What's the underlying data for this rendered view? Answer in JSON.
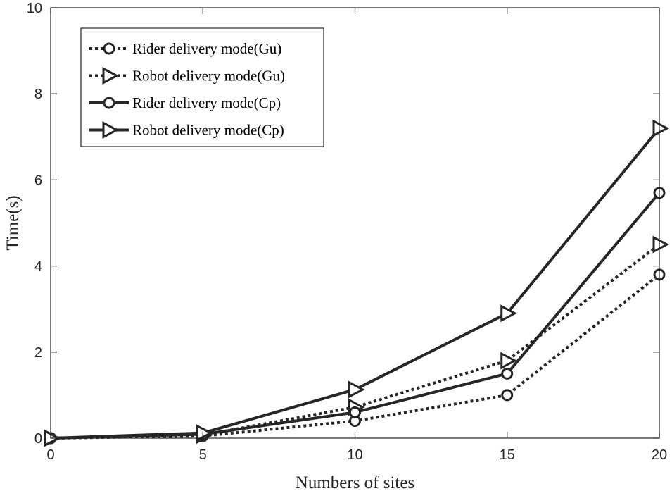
{
  "chart_data": {
    "type": "line",
    "xlabel": "Numbers of sites",
    "ylabel": "Time(s)",
    "xlim": [
      0,
      20
    ],
    "ylim": [
      0,
      10
    ],
    "xticks": [
      0,
      5,
      10,
      15,
      20
    ],
    "yticks": [
      0,
      2,
      4,
      6,
      8,
      10
    ],
    "grid": false,
    "legend_position": "top-left",
    "x": [
      0,
      5,
      10,
      15,
      20
    ],
    "series": [
      {
        "name": "Rider delivery mode(Gu)",
        "values": [
          0,
          0.05,
          0.4,
          1.0,
          3.8
        ],
        "marker": "circle",
        "line_style": "dotted"
      },
      {
        "name": "Robot delivery mode(Gu)",
        "values": [
          0,
          0.07,
          0.72,
          1.8,
          4.5
        ],
        "marker": "triangle-right",
        "line_style": "dotted"
      },
      {
        "name": "Rider delivery mode(Cp)",
        "values": [
          0,
          0.09,
          0.6,
          1.5,
          5.7
        ],
        "marker": "circle",
        "line_style": "solid"
      },
      {
        "name": "Robot delivery mode(Cp)",
        "values": [
          0,
          0.12,
          1.13,
          2.9,
          7.2
        ],
        "marker": "triangle-right",
        "line_style": "solid"
      }
    ],
    "colors": {
      "series": "#262626",
      "axis": "#262626",
      "text": "#262626"
    }
  }
}
